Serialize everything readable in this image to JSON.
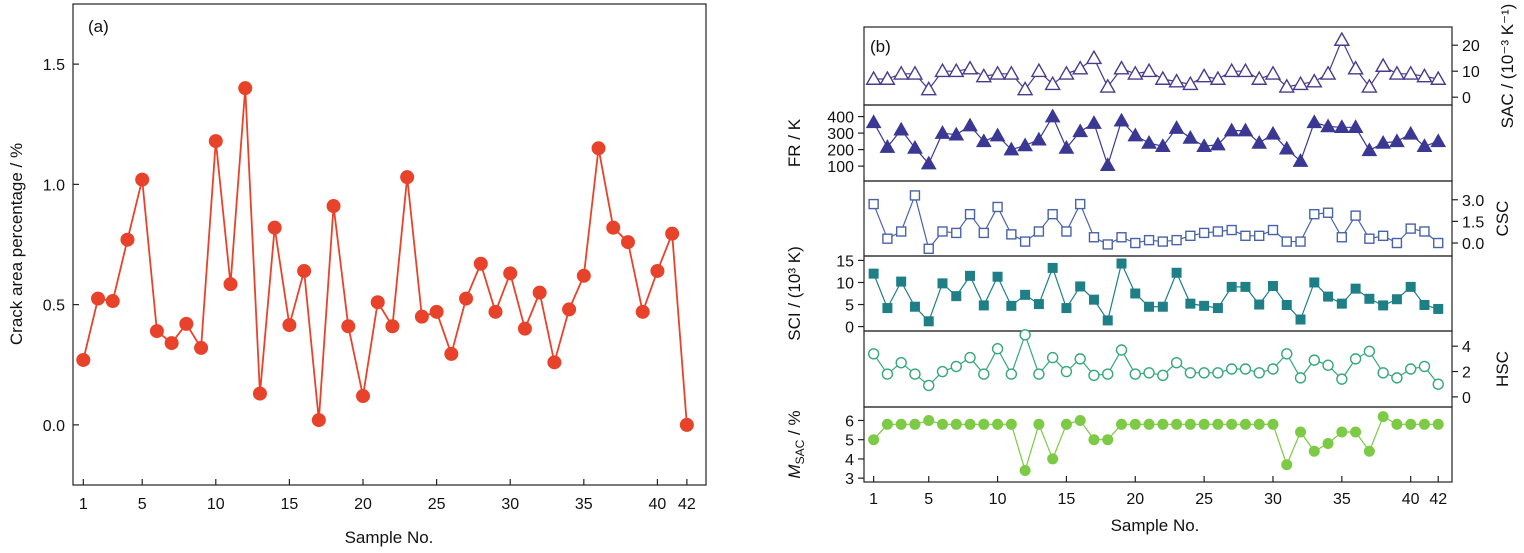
{
  "chart_data": [
    {
      "type": "line",
      "panel_label": "(a)",
      "xlabel": "Sample No.",
      "ylabel": "Crack area percentage / %",
      "xlim": [
        0.3,
        43.3
      ],
      "ylim": [
        -0.25,
        1.75
      ],
      "xticks": [
        "1",
        "5",
        "10",
        "15",
        "20",
        "25",
        "30",
        "35",
        "40",
        "42"
      ],
      "xtick_values": [
        1,
        5,
        10,
        15,
        20,
        25,
        30,
        35,
        40,
        42
      ],
      "yticks": [
        "0.0",
        "0.5",
        "1.0",
        "1.5"
      ],
      "ytick_values": [
        0.0,
        0.5,
        1.0,
        1.5
      ],
      "grid": false,
      "color": "#e8432a",
      "series": [
        {
          "x": [
            1,
            2,
            3,
            4,
            5,
            6,
            7,
            8,
            9,
            10,
            11,
            12,
            13,
            14,
            15,
            16,
            17,
            18,
            19,
            20,
            21,
            22,
            23,
            24,
            25,
            26,
            27,
            28,
            29,
            30,
            31,
            32,
            33,
            34,
            35,
            36,
            37,
            38,
            39,
            40,
            41,
            42
          ],
          "values": [
            0.27,
            0.525,
            0.515,
            0.77,
            1.02,
            0.39,
            0.34,
            0.42,
            0.32,
            1.18,
            0.585,
            1.4,
            0.13,
            0.82,
            0.415,
            0.64,
            0.02,
            0.91,
            0.41,
            0.12,
            0.51,
            0.41,
            1.03,
            0.45,
            0.47,
            0.295,
            0.525,
            0.67,
            0.47,
            0.63,
            0.4,
            0.55,
            0.26,
            0.48,
            0.62,
            1.15,
            0.82,
            0.76,
            0.47,
            0.64,
            0.795,
            0.0
          ]
        }
      ]
    },
    {
      "type": "line",
      "panel_label": "(b)",
      "xlabel": "Sample No.",
      "xlim": [
        0.3,
        43.0
      ],
      "xticks": [
        "1",
        "5",
        "10",
        "15",
        "20",
        "25",
        "30",
        "35",
        "40",
        "42"
      ],
      "xtick_values": [
        1,
        5,
        10,
        15,
        20,
        25,
        30,
        35,
        40,
        42
      ],
      "grid": false,
      "subpanels": [
        {
          "name": "SAC",
          "axis_side": "right",
          "ylabel": "SAC / (10⁻³ K⁻¹)",
          "ylim": [
            -3,
            27
          ],
          "yticks": [
            "0",
            "10",
            "20"
          ],
          "ytick_values": [
            0,
            10,
            20
          ],
          "marker": "triangle-open",
          "color": "#4a3a8c",
          "values": [
            7,
            7,
            9,
            9,
            3,
            10,
            10,
            11,
            8,
            9,
            9,
            3,
            10,
            5,
            9,
            11,
            15,
            4,
            11,
            9,
            10,
            7,
            6,
            5,
            8,
            7,
            10,
            10,
            7,
            9,
            4,
            5,
            6,
            9,
            22,
            11,
            4,
            12,
            9,
            9,
            8,
            7
          ]
        },
        {
          "name": "FR",
          "axis_side": "left",
          "ylabel": "FR / K",
          "ylim": [
            10,
            470
          ],
          "yticks": [
            "100",
            "200",
            "300",
            "400"
          ],
          "ytick_values": [
            100,
            200,
            300,
            400
          ],
          "marker": "triangle-filled",
          "color": "#3b3893",
          "values": [
            365,
            215,
            320,
            210,
            115,
            300,
            290,
            345,
            250,
            285,
            200,
            225,
            260,
            400,
            210,
            310,
            360,
            105,
            375,
            285,
            240,
            220,
            330,
            270,
            220,
            230,
            315,
            315,
            240,
            295,
            205,
            130,
            365,
            340,
            335,
            335,
            195,
            240,
            250,
            295,
            220,
            250
          ]
        },
        {
          "name": "CSC",
          "axis_side": "right",
          "ylabel": "CSC",
          "ylim": [
            -0.9,
            4.3
          ],
          "yticks": [
            "0.0",
            "1.5",
            "3.0"
          ],
          "ytick_values": [
            0.0,
            1.5,
            3.0
          ],
          "marker": "square-open",
          "color": "#4863a8",
          "values": [
            2.7,
            0.3,
            0.8,
            3.3,
            -0.4,
            0.8,
            0.7,
            2.0,
            0.7,
            2.5,
            0.6,
            0.1,
            0.8,
            2.0,
            0.8,
            2.7,
            0.4,
            -0.1,
            0.4,
            0.0,
            0.2,
            0.1,
            0.2,
            0.5,
            0.7,
            0.8,
            0.9,
            0.5,
            0.5,
            0.9,
            0.1,
            0.1,
            2.0,
            2.1,
            0.4,
            1.9,
            0.3,
            0.5,
            0.0,
            1.0,
            0.8,
            0.0
          ]
        },
        {
          "name": "SCI",
          "axis_side": "left",
          "ylabel": "SCI / (10³ K)",
          "ylim": [
            -1,
            16
          ],
          "yticks": [
            "0",
            "5",
            "10",
            "15"
          ],
          "ytick_values": [
            0,
            5,
            10,
            15
          ],
          "marker": "square-filled",
          "color": "#1f7f86",
          "values": [
            12,
            4.2,
            10.2,
            4.5,
            1.2,
            9.8,
            6.9,
            11.5,
            4.8,
            11.3,
            4.7,
            7.2,
            5.1,
            13.3,
            4.2,
            9.1,
            6.1,
            1.4,
            14.3,
            7.5,
            4.5,
            4.5,
            12.2,
            5.2,
            4.7,
            4.2,
            9.0,
            9.0,
            5.0,
            9.2,
            4.9,
            1.6,
            10.0,
            6.8,
            5.2,
            8.6,
            6.3,
            4.8,
            6.2,
            9.0,
            4.9,
            4.0
          ]
        },
        {
          "name": "HSC",
          "axis_side": "right",
          "ylabel": "HSC",
          "ylim": [
            -0.8,
            5.2
          ],
          "yticks": [
            "0",
            "2",
            "4"
          ],
          "ytick_values": [
            0,
            2,
            4
          ],
          "marker": "circle-open",
          "color": "#35a87c",
          "values": [
            3.4,
            1.8,
            2.7,
            1.8,
            0.9,
            2.0,
            2.4,
            3.1,
            1.8,
            3.8,
            1.8,
            4.9,
            1.8,
            3.1,
            2.0,
            3.0,
            1.7,
            1.8,
            3.7,
            1.8,
            1.9,
            1.7,
            2.7,
            1.9,
            1.9,
            1.9,
            2.2,
            2.2,
            1.9,
            2.2,
            3.4,
            1.5,
            2.9,
            2.5,
            1.4,
            3.0,
            3.6,
            1.9,
            1.5,
            2.2,
            2.4,
            1.0
          ]
        },
        {
          "name": "MSAC",
          "axis_side": "left",
          "ylabel_main": "M",
          "ylabel_sub": "SAC",
          "ylabel_tail": " / %",
          "ylim": [
            2.8,
            6.7
          ],
          "yticks": [
            "3",
            "4",
            "5",
            "6"
          ],
          "ytick_values": [
            3,
            4,
            5,
            6
          ],
          "marker": "circle-filled",
          "color": "#7cca45",
          "values": [
            5.0,
            5.8,
            5.8,
            5.8,
            6.0,
            5.8,
            5.8,
            5.8,
            5.8,
            5.8,
            5.8,
            3.4,
            5.8,
            4.0,
            5.8,
            6.0,
            5.0,
            5.0,
            5.8,
            5.8,
            5.8,
            5.8,
            5.8,
            5.8,
            5.8,
            5.8,
            5.8,
            5.8,
            5.8,
            5.8,
            3.7,
            5.4,
            4.4,
            4.8,
            5.4,
            5.4,
            4.4,
            6.2,
            5.8,
            5.8,
            5.8,
            5.8
          ]
        }
      ]
    }
  ]
}
